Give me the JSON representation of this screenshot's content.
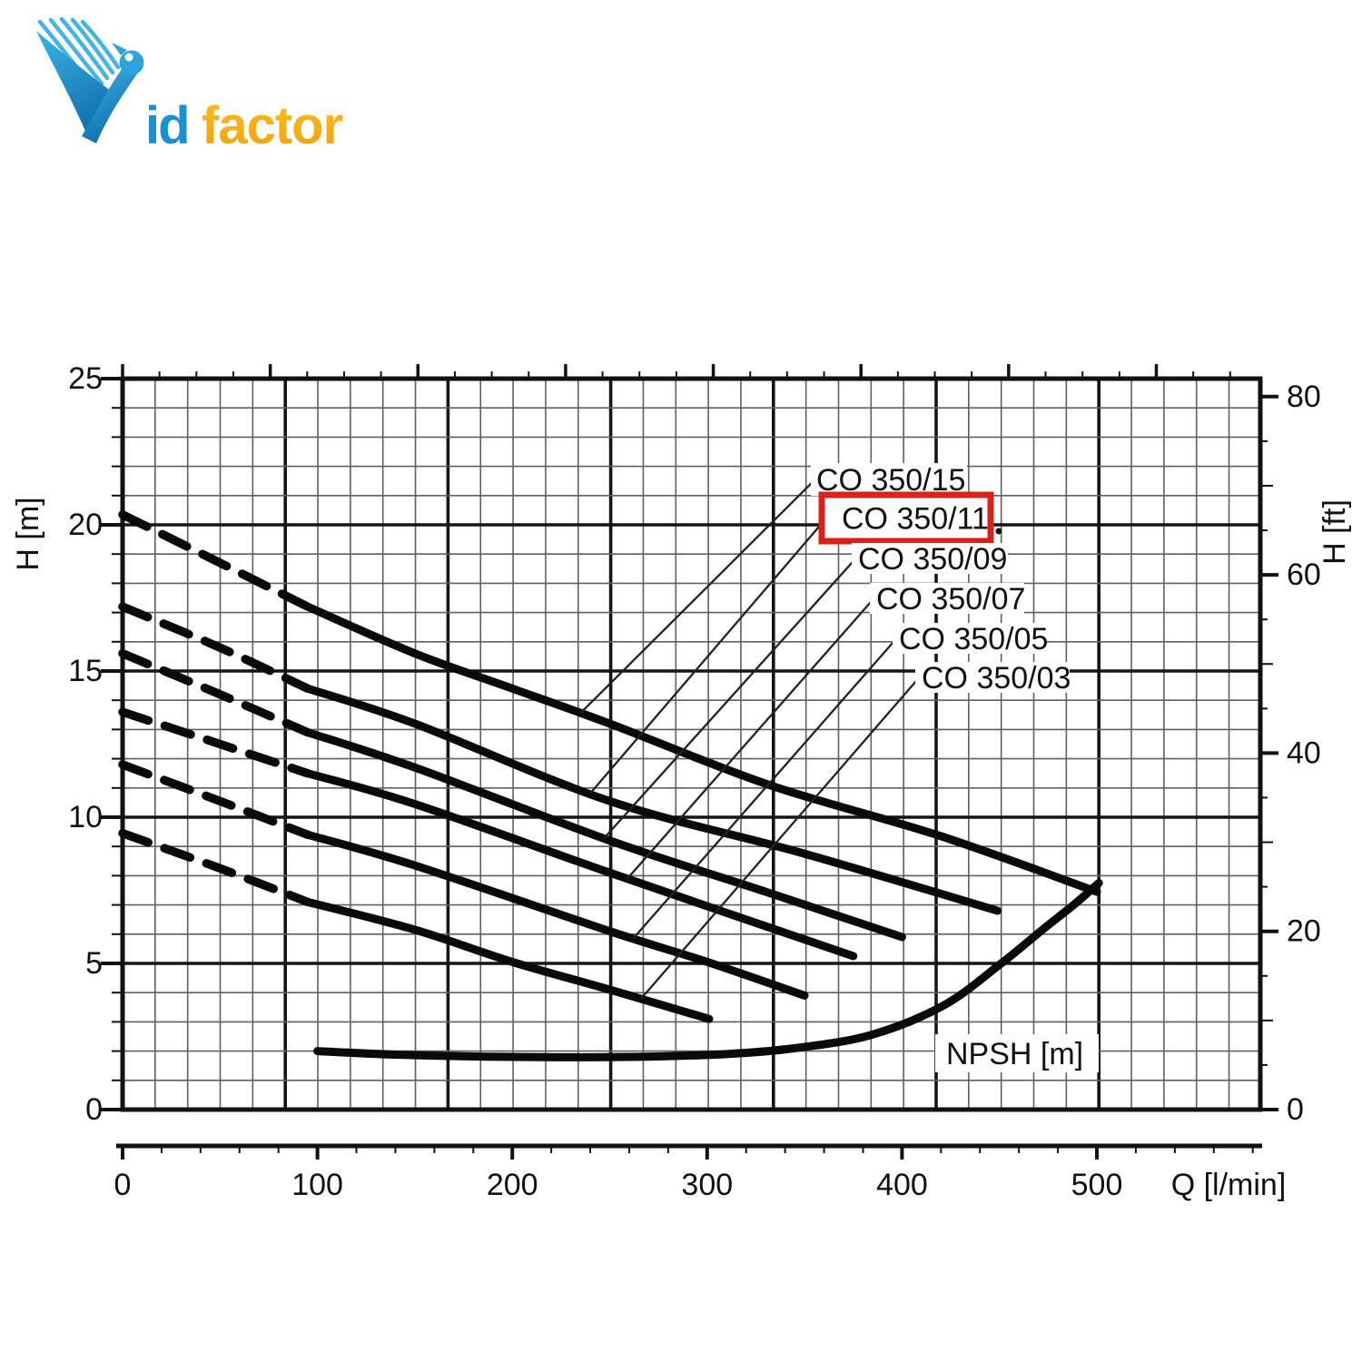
{
  "logo": {
    "part_blue": "id",
    "part_orange": "factor",
    "blue": "#1b8fd0",
    "blue_light": "#3cb4e5",
    "blue_dark": "#1170ad",
    "orange": "#f6ab16"
  },
  "chart": {
    "y_left": {
      "title": "H [m]",
      "ticks": [
        "0",
        "5",
        "10",
        "15",
        "20",
        "25"
      ]
    },
    "y_right": {
      "title": "H [ft]",
      "ticks": [
        "0",
        "20",
        "40",
        "60",
        "80"
      ]
    },
    "x_bottom": {
      "title": "Q [l/min]",
      "ticks": [
        "0",
        "100",
        "200",
        "300",
        "400",
        "500"
      ]
    },
    "npsh_label": "NPSH [m]",
    "highlight_color": "#d6231b",
    "highlighted_label": "CO 350/11",
    "curve_labels": [
      {
        "label": "CO 350/15"
      },
      {
        "label": "CO 350/11"
      },
      {
        "label": "CO 350/09"
      },
      {
        "label": "CO 350/07"
      },
      {
        "label": "CO 350/05"
      },
      {
        "label": "CO 350/03"
      }
    ]
  },
  "chart_data": {
    "type": "line",
    "title": "",
    "xlabel": "Q [l/min]",
    "ylabel_left": "H [m]",
    "ylabel_right": "H [ft]",
    "xlim": [
      0,
      584
    ],
    "ylim_m": [
      0,
      25
    ],
    "ylim_ft": [
      0,
      80
    ],
    "grid": "on",
    "legend_position": "inline-labels",
    "series": [
      {
        "name": "CO 350/15",
        "dashed_until_q": 95,
        "points": [
          [
            0,
            20.35
          ],
          [
            50,
            18.7
          ],
          [
            95,
            17.2
          ],
          [
            150,
            15.6
          ],
          [
            200,
            14.4
          ],
          [
            250,
            13.2
          ],
          [
            332,
            11.1
          ],
          [
            420,
            9.35
          ],
          [
            500,
            7.45
          ]
        ]
      },
      {
        "name": "CO 350/11",
        "dashed_until_q": 95,
        "points": [
          [
            0,
            17.2
          ],
          [
            50,
            15.8
          ],
          [
            95,
            14.4
          ],
          [
            150,
            13.2
          ],
          [
            250,
            10.55
          ],
          [
            350,
            8.75
          ],
          [
            449,
            6.8
          ]
        ]
      },
      {
        "name": "CO 350/09",
        "dashed_until_q": 95,
        "points": [
          [
            0,
            15.6
          ],
          [
            50,
            14.2
          ],
          [
            95,
            12.9
          ],
          [
            150,
            11.7
          ],
          [
            250,
            9.2
          ],
          [
            330,
            7.45
          ],
          [
            400,
            5.9
          ]
        ]
      },
      {
        "name": "CO 350/07",
        "dashed_until_q": 95,
        "points": [
          [
            0,
            13.6
          ],
          [
            50,
            12.5
          ],
          [
            95,
            11.5
          ],
          [
            150,
            10.45
          ],
          [
            250,
            8.1
          ],
          [
            320,
            6.5
          ],
          [
            375,
            5.25
          ]
        ]
      },
      {
        "name": "CO 350/05",
        "dashed_until_q": 95,
        "points": [
          [
            0,
            11.8
          ],
          [
            50,
            10.55
          ],
          [
            95,
            9.4
          ],
          [
            150,
            8.35
          ],
          [
            250,
            6.1
          ],
          [
            300,
            5.05
          ],
          [
            350,
            3.9
          ]
        ]
      },
      {
        "name": "CO 350/03",
        "dashed_until_q": 95,
        "points": [
          [
            0,
            9.45
          ],
          [
            50,
            8.25
          ],
          [
            95,
            7.1
          ],
          [
            150,
            6.15
          ],
          [
            200,
            5.05
          ],
          [
            250,
            4.1
          ],
          [
            301,
            3.1
          ]
        ]
      },
      {
        "name": "NPSH [m]",
        "dashed_until_q": null,
        "points": [
          [
            100,
            2.0
          ],
          [
            140,
            1.88
          ],
          [
            200,
            1.8
          ],
          [
            260,
            1.8
          ],
          [
            310,
            1.9
          ],
          [
            345,
            2.1
          ],
          [
            384,
            2.55
          ],
          [
            421,
            3.55
          ],
          [
            450,
            4.95
          ],
          [
            473,
            6.2
          ],
          [
            489,
            7.05
          ],
          [
            501,
            7.75
          ]
        ]
      }
    ]
  }
}
